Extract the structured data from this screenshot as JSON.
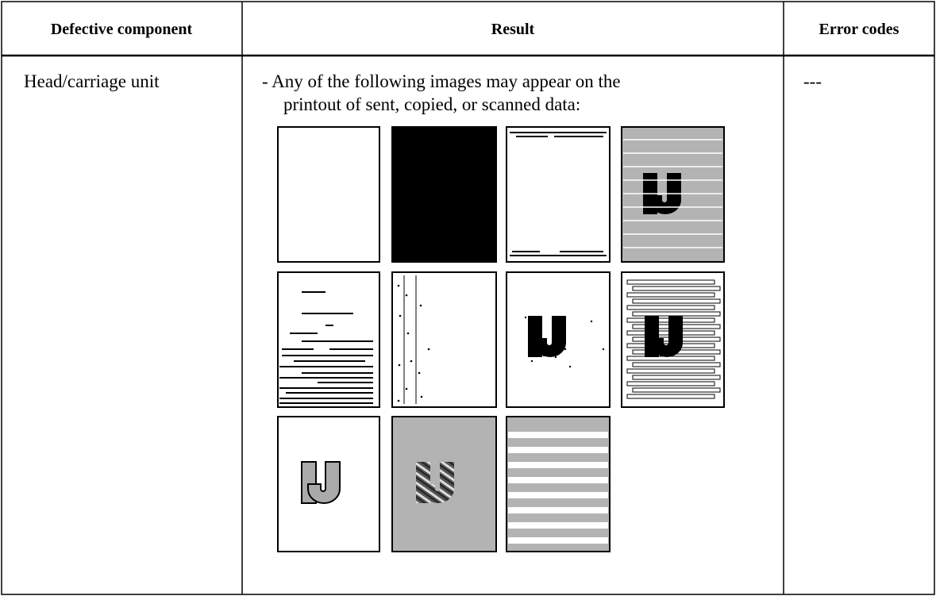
{
  "table": {
    "header": [
      "Defective component",
      "Result",
      "Error codes"
    ],
    "rows": [
      [
        "Head/carriage unit",
        [
          "- Any of the following images may appear on the",
          "printout of sent, copied, or scanned data:"
        ],
        "---"
      ]
    ]
  }
}
